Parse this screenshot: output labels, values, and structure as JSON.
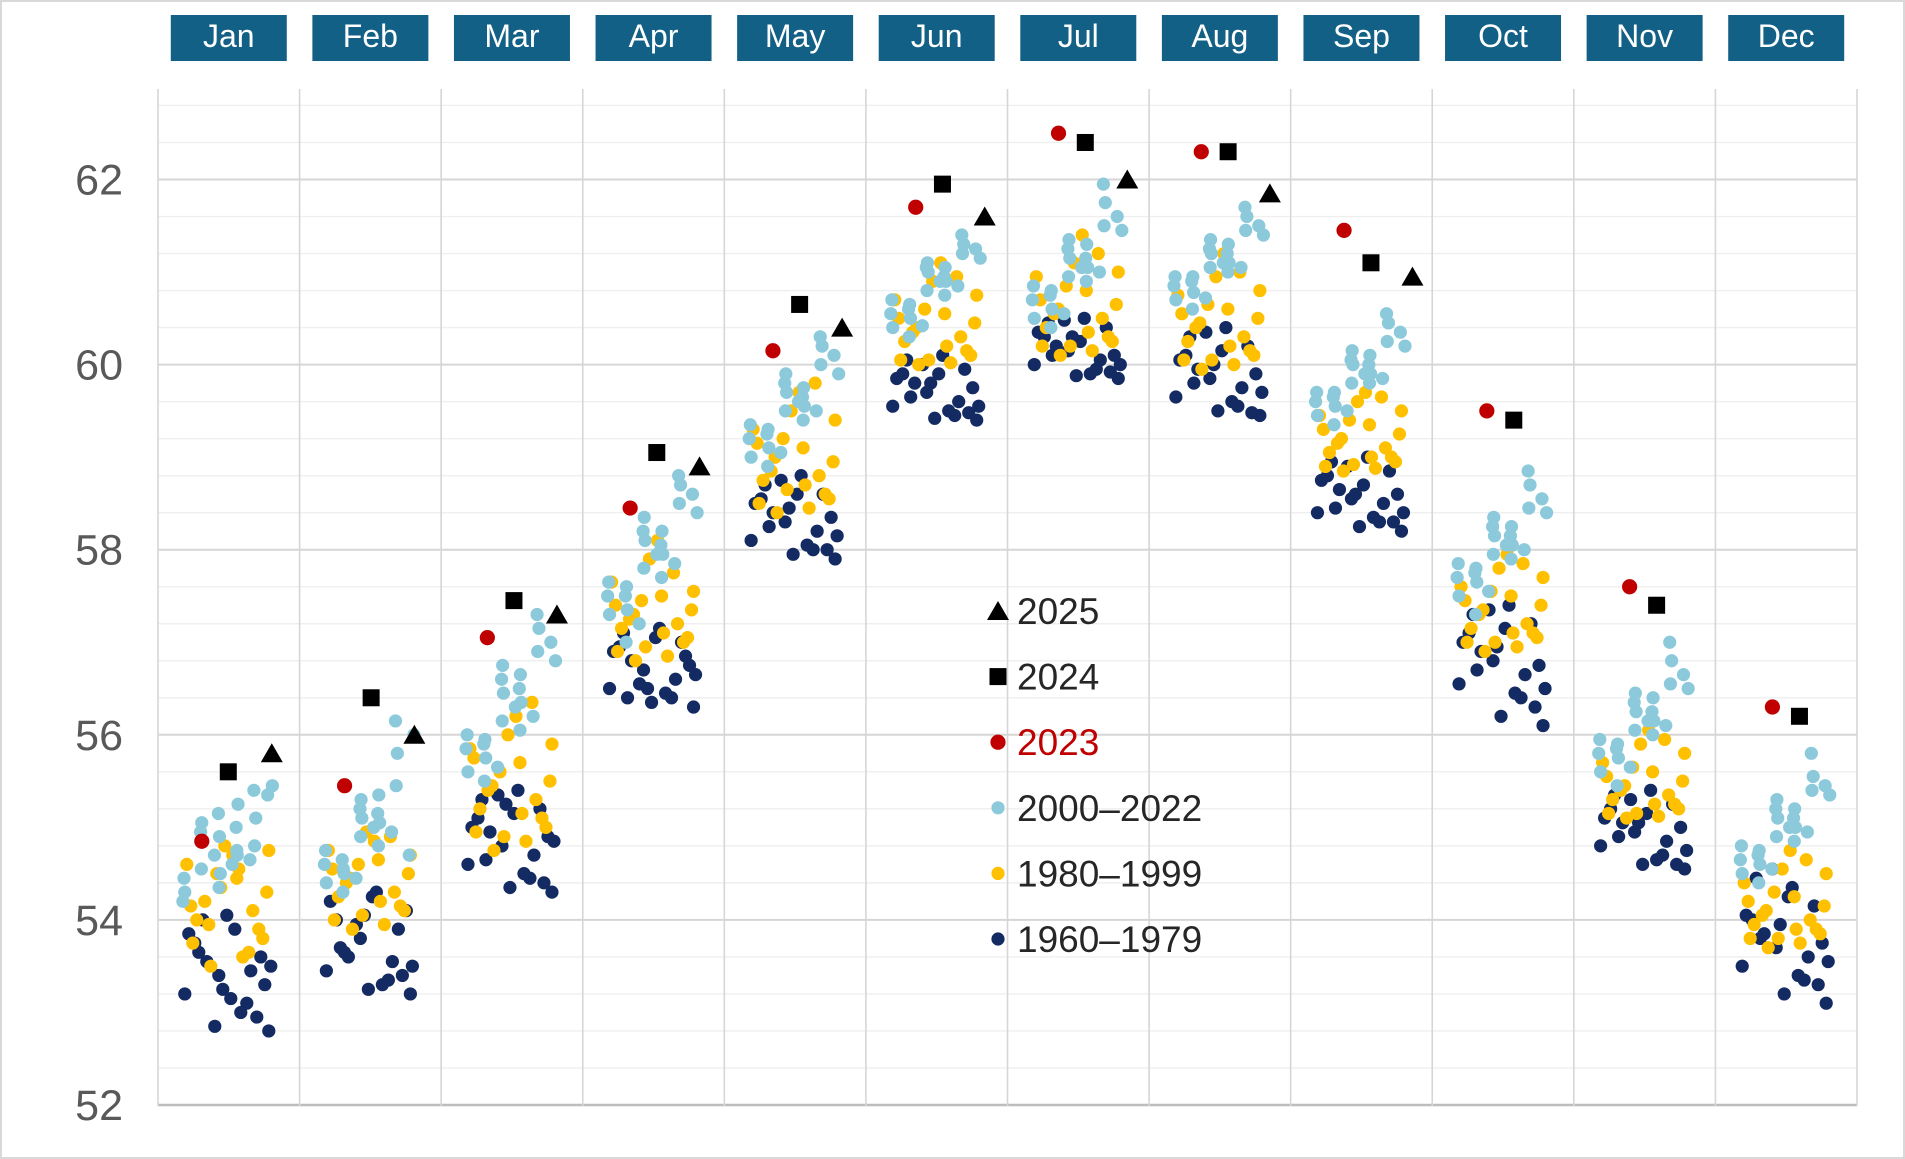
{
  "months_labels": [
    "Jan",
    "Feb",
    "Mar",
    "Apr",
    "May",
    "Jun",
    "Jul",
    "Aug",
    "Sep",
    "Oct",
    "Nov",
    "Dec"
  ],
  "colors": {
    "header_box": "#136087",
    "header_text": "#ffffff",
    "series_1960_1979": "#132A62",
    "series_1980_1999": "#FFC000",
    "series_2000_2022": "#8CCADB",
    "series_2023": "#C00000",
    "series_2024": "#000000",
    "series_2025": "#000000",
    "axis_label": "#595959",
    "grid_major": "#d6d6d6",
    "grid_minor": "#efefef",
    "axis_line": "#bdbdbd",
    "legend_text": "#262626",
    "legend_text_2023": "#C00000"
  },
  "y_axis": {
    "min": 52,
    "max": 63,
    "major_ticks": [
      52,
      54,
      56,
      58,
      60,
      62
    ],
    "minor_step": 0.4
  },
  "legend": [
    {
      "label": "2025",
      "marker": "triangle",
      "color": "#000000",
      "text_color": "#262626"
    },
    {
      "label": "2024",
      "marker": "square",
      "color": "#000000",
      "text_color": "#262626"
    },
    {
      "label": "2023",
      "marker": "circle-lg",
      "color": "#C00000",
      "text_color": "#C00000"
    },
    {
      "label": "2000–2022",
      "marker": "circle",
      "color": "#8CCADB",
      "text_color": "#262626"
    },
    {
      "label": "1980–1999",
      "marker": "circle",
      "color": "#FFC000",
      "text_color": "#262626"
    },
    {
      "label": "1960–1979",
      "marker": "circle",
      "color": "#132A62",
      "text_color": "#262626"
    }
  ],
  "chart_data": {
    "type": "scatter",
    "title": "",
    "xlabel": "",
    "ylabel": "",
    "ylim": [
      52,
      63
    ],
    "grid": true,
    "legend_position": "center-right",
    "months": [
      {
        "name": "Jan",
        "y1960_1979": [
          53.4,
          53.1,
          53.75,
          52.8,
          53.55,
          53.9,
          53.2,
          52.95,
          54.05,
          53.3,
          53.65,
          53.0,
          53.85,
          53.45,
          52.85,
          53.6,
          53.15,
          54.0,
          53.5,
          53.25
        ],
        "y1980_1999": [
          54.1,
          53.75,
          54.45,
          53.5,
          54.3,
          54.8,
          53.9,
          54.6,
          53.6,
          54.2,
          54.7,
          53.8,
          54.5,
          54.0,
          53.65,
          54.35,
          54.75,
          53.95,
          54.55,
          54.15
        ],
        "y2000_2022": [
          54.3,
          54.55,
          54.2,
          54.7,
          54.45,
          54.85,
          54.35,
          54.95,
          54.6,
          55.05,
          54.5,
          54.75,
          55.15,
          54.65,
          54.9,
          55.25,
          54.8,
          55.0,
          55.35,
          54.7,
          55.1,
          55.45,
          55.4
        ],
        "v2023": 54.85,
        "v2024": 55.6,
        "v2025": 55.8
      },
      {
        "name": "Feb",
        "y1960_1979": [
          53.8,
          53.35,
          54.0,
          53.2,
          53.6,
          54.3,
          53.45,
          53.9,
          53.25,
          54.1,
          53.7,
          53.3,
          54.2,
          53.55,
          53.95,
          53.4,
          54.25,
          53.65,
          53.5,
          54.05
        ],
        "y1980_1999": [
          54.3,
          54.0,
          54.65,
          53.9,
          54.5,
          54.95,
          54.15,
          54.75,
          53.95,
          54.4,
          54.85,
          54.1,
          54.6,
          54.25,
          54.9,
          54.05,
          54.7,
          54.45,
          54.2,
          54.55
        ],
        "y2000_2022": [
          54.4,
          54.3,
          54.6,
          54.45,
          54.75,
          54.5,
          54.9,
          54.65,
          55.0,
          54.55,
          55.1,
          54.8,
          55.2,
          54.95,
          55.3,
          55.05,
          55.45,
          55.15,
          54.7,
          55.35,
          55.8,
          56.0,
          56.15
        ],
        "v2023": 55.45,
        "v2024": 56.4,
        "v2025": 56.0
      },
      {
        "name": "Mar",
        "y1960_1979": [
          54.8,
          54.45,
          55.1,
          54.3,
          54.95,
          55.4,
          54.6,
          55.2,
          54.35,
          54.9,
          55.3,
          54.5,
          55.0,
          54.7,
          55.35,
          54.4,
          55.15,
          54.65,
          54.85,
          55.25
        ],
        "y1980_1999": [
          55.3,
          54.95,
          55.7,
          54.75,
          55.5,
          56.0,
          55.1,
          55.85,
          54.85,
          55.4,
          56.2,
          55.0,
          55.6,
          55.2,
          56.35,
          54.9,
          55.9,
          55.45,
          55.15,
          55.75
        ],
        "y2000_2022": [
          55.6,
          55.5,
          55.85,
          55.65,
          56.0,
          55.75,
          56.15,
          55.9,
          56.3,
          55.95,
          56.45,
          56.05,
          56.6,
          56.2,
          56.75,
          56.35,
          56.9,
          56.5,
          57.0,
          56.65,
          57.15,
          56.8,
          57.3
        ],
        "v2023": 57.05,
        "v2024": 57.45,
        "v2025": 57.3
      },
      {
        "name": "Apr",
        "y1960_1979": [
          56.7,
          56.4,
          56.95,
          56.3,
          56.8,
          57.15,
          56.5,
          57.0,
          56.35,
          56.75,
          57.1,
          56.45,
          56.9,
          56.6,
          56.55,
          56.85,
          57.05,
          56.4,
          56.65,
          56.5
        ],
        "y1980_1999": [
          57.2,
          56.9,
          57.5,
          56.8,
          57.35,
          57.9,
          57.0,
          57.65,
          56.85,
          57.25,
          58.1,
          57.05,
          57.45,
          57.15,
          57.75,
          56.95,
          57.55,
          57.3,
          57.1,
          57.4
        ],
        "y2000_2022": [
          57.3,
          57.0,
          57.5,
          57.2,
          57.65,
          57.35,
          57.8,
          57.5,
          57.95,
          57.6,
          58.1,
          57.7,
          58.2,
          57.85,
          58.35,
          57.95,
          58.5,
          58.05,
          58.6,
          58.2,
          58.7,
          58.4,
          58.8
        ],
        "v2023": 58.45,
        "v2024": 59.05,
        "v2025": 58.9
      },
      {
        "name": "May",
        "y1960_1979": [
          58.3,
          58.0,
          58.55,
          57.9,
          58.4,
          58.8,
          58.1,
          58.6,
          57.95,
          58.35,
          58.7,
          58.05,
          58.5,
          58.2,
          58.75,
          58.0,
          58.6,
          58.25,
          58.15,
          58.45
        ],
        "y1980_1999": [
          58.8,
          58.5,
          59.1,
          58.4,
          58.95,
          59.5,
          58.6,
          59.3,
          58.45,
          58.85,
          59.7,
          58.55,
          59.2,
          58.75,
          59.8,
          58.65,
          59.4,
          59.0,
          58.7,
          59.15
        ],
        "y2000_2022": [
          59.0,
          58.9,
          59.2,
          59.05,
          59.35,
          59.1,
          59.5,
          59.25,
          59.6,
          59.3,
          59.7,
          59.4,
          59.8,
          59.5,
          59.9,
          59.55,
          60.0,
          59.65,
          60.1,
          59.75,
          60.2,
          59.9,
          60.3
        ],
        "v2023": 60.15,
        "v2024": 60.65,
        "v2025": 60.4
      },
      {
        "name": "Jun",
        "y1960_1979": [
          59.7,
          59.45,
          59.9,
          59.4,
          59.8,
          60.1,
          59.55,
          59.95,
          59.42,
          59.75,
          60.05,
          59.5,
          59.85,
          59.6,
          60.0,
          59.48,
          59.9,
          59.65,
          59.55,
          59.8
        ],
        "y1980_1999": [
          60.3,
          60.05,
          60.55,
          60.0,
          60.45,
          60.9,
          60.15,
          60.7,
          60.02,
          60.35,
          61.1,
          60.1,
          60.6,
          60.25,
          60.95,
          60.05,
          60.75,
          60.4,
          60.2,
          60.5
        ],
        "y2000_2022": [
          60.4,
          60.3,
          60.55,
          60.42,
          60.7,
          60.5,
          60.8,
          60.6,
          60.9,
          60.65,
          61.0,
          60.75,
          61.05,
          60.85,
          61.1,
          60.9,
          61.2,
          60.95,
          61.25,
          61.05,
          61.3,
          61.15,
          61.4
        ],
        "v2023": 61.7,
        "v2024": 61.95,
        "v2025": 61.6
      },
      {
        "name": "Jul",
        "y1960_1979": [
          60.15,
          59.95,
          60.3,
          59.85,
          60.2,
          60.5,
          60.0,
          60.4,
          59.88,
          60.1,
          60.45,
          59.9,
          60.35,
          60.05,
          60.48,
          59.92,
          60.25,
          60.1,
          60.0,
          60.3
        ],
        "y1980_1999": [
          60.5,
          60.2,
          60.8,
          60.1,
          60.65,
          61.1,
          60.3,
          60.95,
          60.15,
          60.55,
          61.4,
          60.25,
          60.85,
          60.4,
          61.2,
          60.2,
          61.0,
          60.6,
          60.35,
          60.7
        ],
        "y2000_2022": [
          60.5,
          60.4,
          60.7,
          60.55,
          60.85,
          60.6,
          60.95,
          60.75,
          61.05,
          60.8,
          61.15,
          60.9,
          61.25,
          61.0,
          61.35,
          61.05,
          61.5,
          61.15,
          61.6,
          61.3,
          61.75,
          61.45,
          61.95
        ],
        "v2023": 62.5,
        "v2024": 62.4,
        "v2025": 62.0
      },
      {
        "name": "Aug",
        "y1960_1979": [
          59.85,
          59.55,
          60.1,
          59.45,
          59.95,
          60.4,
          59.65,
          60.2,
          59.5,
          59.9,
          60.3,
          59.6,
          60.05,
          59.75,
          60.35,
          59.48,
          60.15,
          59.8,
          59.7,
          60.0
        ],
        "y1980_1999": [
          60.3,
          60.05,
          60.6,
          59.95,
          60.5,
          60.95,
          60.15,
          60.75,
          60.0,
          60.4,
          61.2,
          60.1,
          60.65,
          60.25,
          61.0,
          60.05,
          60.8,
          60.45,
          60.2,
          60.55
        ],
        "y2000_2022": [
          60.7,
          60.6,
          60.85,
          60.72,
          60.95,
          60.78,
          61.05,
          60.9,
          61.1,
          60.95,
          61.2,
          61.0,
          61.25,
          61.05,
          61.35,
          61.1,
          61.45,
          61.2,
          61.5,
          61.3,
          61.6,
          61.4,
          61.7
        ],
        "v2023": 62.3,
        "v2024": 62.3,
        "v2025": 61.85
      },
      {
        "name": "Sep",
        "y1960_1979": [
          58.55,
          58.3,
          58.8,
          58.2,
          58.65,
          59.0,
          58.4,
          58.85,
          58.25,
          58.6,
          58.95,
          58.35,
          58.75,
          58.5,
          58.9,
          58.3,
          58.7,
          58.45,
          58.4,
          58.6
        ],
        "y1980_1999": [
          59.1,
          58.9,
          59.35,
          58.85,
          59.25,
          59.6,
          59.0,
          59.45,
          58.88,
          59.15,
          59.7,
          58.95,
          59.4,
          59.05,
          59.65,
          58.92,
          59.5,
          59.2,
          59.0,
          59.3
        ],
        "y2000_2022": [
          59.45,
          59.35,
          59.6,
          59.5,
          59.7,
          59.55,
          59.8,
          59.65,
          59.9,
          59.7,
          60.0,
          59.8,
          60.05,
          59.85,
          60.15,
          59.9,
          60.25,
          60.0,
          60.35,
          60.1,
          60.45,
          60.2,
          60.55
        ],
        "v2023": 61.45,
        "v2024": 61.1,
        "v2025": 60.95
      },
      {
        "name": "Oct",
        "y1960_1979": [
          56.8,
          56.4,
          57.1,
          56.1,
          56.9,
          57.4,
          56.55,
          57.2,
          56.2,
          56.75,
          57.3,
          56.45,
          57.0,
          56.65,
          57.35,
          56.3,
          57.15,
          56.7,
          56.5,
          56.95
        ],
        "y1980_1999": [
          57.2,
          57.0,
          57.5,
          56.9,
          57.4,
          57.8,
          57.1,
          57.6,
          56.95,
          57.3,
          57.95,
          57.05,
          57.55,
          57.15,
          57.85,
          57.0,
          57.7,
          57.35,
          57.1,
          57.45
        ],
        "y2000_2022": [
          57.5,
          57.3,
          57.7,
          57.55,
          57.85,
          57.65,
          57.95,
          57.75,
          58.05,
          57.8,
          58.15,
          57.9,
          58.25,
          58.0,
          58.35,
          58.05,
          58.45,
          58.15,
          58.55,
          58.25,
          58.7,
          58.4,
          58.85
        ],
        "v2023": 59.5,
        "v2024": 59.4,
        "v2025": null
      },
      {
        "name": "Nov",
        "y1960_1979": [
          54.95,
          54.7,
          55.2,
          54.55,
          55.05,
          55.4,
          54.8,
          55.25,
          54.6,
          55.0,
          55.35,
          54.65,
          55.1,
          54.85,
          55.3,
          54.6,
          55.15,
          54.9,
          54.75,
          55.05
        ],
        "y1980_1999": [
          55.35,
          55.15,
          55.6,
          55.1,
          55.5,
          55.9,
          55.25,
          55.7,
          55.12,
          55.4,
          56.05,
          55.2,
          55.65,
          55.3,
          55.95,
          55.15,
          55.8,
          55.45,
          55.25,
          55.55
        ],
        "y2000_2022": [
          55.6,
          55.45,
          55.8,
          55.65,
          55.95,
          55.75,
          56.05,
          55.85,
          56.15,
          55.9,
          56.25,
          56.0,
          56.35,
          56.1,
          56.45,
          56.15,
          56.55,
          56.25,
          56.65,
          56.4,
          56.8,
          56.5,
          57.0
        ],
        "v2023": 57.6,
        "v2024": 57.4,
        "v2025": null
      },
      {
        "name": "Dec",
        "y1960_1979": [
          53.7,
          53.35,
          54.0,
          53.1,
          53.85,
          54.35,
          53.5,
          54.15,
          53.2,
          53.75,
          54.45,
          53.4,
          54.05,
          53.6,
          54.55,
          53.3,
          54.25,
          53.8,
          53.55,
          53.95
        ],
        "y1980_1999": [
          54.0,
          53.8,
          54.25,
          53.7,
          54.15,
          54.55,
          53.9,
          54.4,
          53.75,
          54.05,
          54.75,
          53.85,
          54.3,
          53.95,
          54.65,
          53.8,
          54.5,
          54.1,
          53.9,
          54.2
        ],
        "y2000_2022": [
          54.5,
          54.4,
          54.65,
          54.55,
          54.8,
          54.6,
          54.9,
          54.7,
          55.0,
          54.75,
          55.1,
          54.85,
          55.2,
          54.95,
          55.3,
          55.0,
          55.4,
          55.1,
          55.45,
          55.2,
          55.55,
          55.35,
          55.8
        ],
        "v2023": 56.3,
        "v2024": 56.2,
        "v2025": null
      }
    ]
  }
}
